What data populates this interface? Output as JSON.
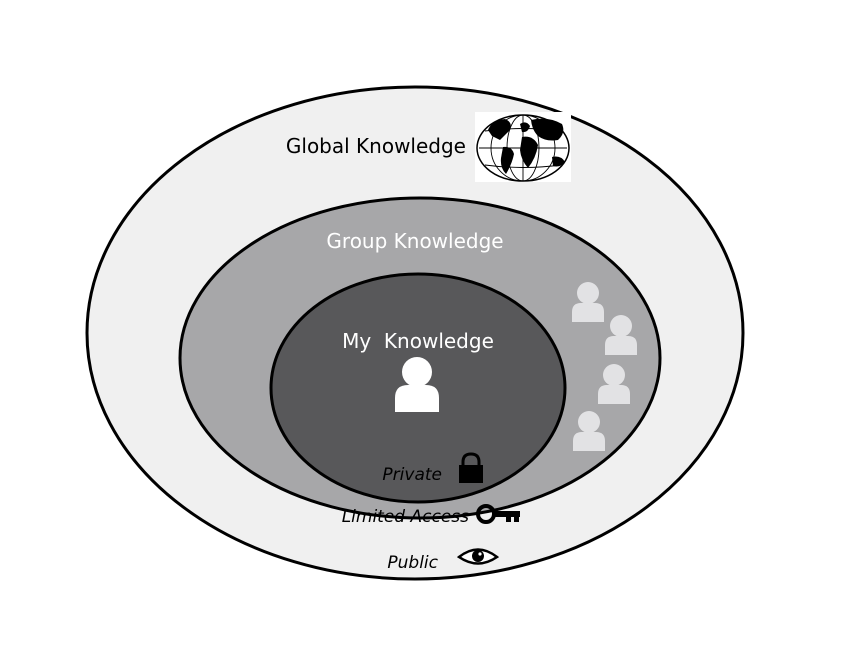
{
  "diagram": {
    "circles": {
      "global": {
        "label": "Global Knowledge",
        "fill": "#f0f0f0"
      },
      "group": {
        "label": "Group Knowledge",
        "fill": "#a7a7a9"
      },
      "my": {
        "label": "My  Knowledge",
        "fill": "#58585a"
      }
    },
    "access": {
      "private": {
        "label": "Private",
        "icon": "lock-icon"
      },
      "limited": {
        "label": "Limited Access",
        "icon": "key-icon"
      },
      "public": {
        "label": "Public",
        "icon": "eye-icon"
      }
    },
    "icons": {
      "globe": "globe-icon",
      "person": "person-icon",
      "group_people": "group-people-icon"
    },
    "colors": {
      "outline": "#000000",
      "person_main": "#ffffff",
      "person_group": "#e2e2e4",
      "label_dark": "#000000",
      "label_light": "#ffffff"
    }
  }
}
